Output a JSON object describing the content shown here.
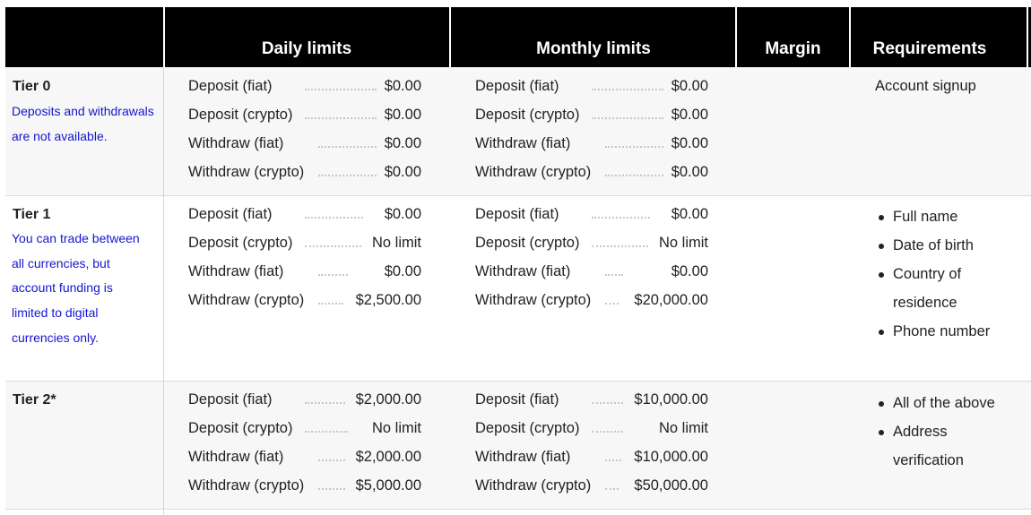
{
  "headers": {
    "daily": "Daily limits",
    "monthly": "Monthly limits",
    "margin": "Margin",
    "requirements": "Requirements"
  },
  "tiers": [
    {
      "title": "Tier 0",
      "desc": "Deposits and withdrawals are not available.",
      "daily": [
        {
          "label": "Deposit (fiat)",
          "value": "$0.00"
        },
        {
          "label": "Deposit (crypto)",
          "value": "$0.00"
        },
        {
          "label": "Withdraw (fiat)",
          "value": "$0.00"
        },
        {
          "label": "Withdraw (crypto)",
          "value": "$0.00"
        }
      ],
      "monthly": [
        {
          "label": "Deposit (fiat)",
          "value": "$0.00"
        },
        {
          "label": "Deposit (crypto)",
          "value": "$0.00"
        },
        {
          "label": "Withdraw (fiat)",
          "value": "$0.00"
        },
        {
          "label": "Withdraw (crypto)",
          "value": "$0.00"
        }
      ],
      "requirements_text": "Account signup"
    },
    {
      "title": "Tier 1",
      "desc": "You can trade between all currencies, but account funding is limited to digital currencies only.",
      "daily": [
        {
          "label": "Deposit (fiat)",
          "value": "$0.00"
        },
        {
          "label": "Deposit (crypto)",
          "value": "No limit"
        },
        {
          "label": "Withdraw (fiat)",
          "value": "$0.00"
        },
        {
          "label": "Withdraw (crypto)",
          "value": "$2,500.00"
        }
      ],
      "monthly": [
        {
          "label": "Deposit (fiat)",
          "value": "$0.00"
        },
        {
          "label": "Deposit (crypto)",
          "value": "No limit"
        },
        {
          "label": "Withdraw (fiat)",
          "value": "$0.00"
        },
        {
          "label": "Withdraw (crypto)",
          "value": "$20,000.00"
        }
      ],
      "requirements": [
        "Full name",
        "Date of birth",
        "Country of residence",
        "Phone number"
      ]
    },
    {
      "title": "Tier 2*",
      "desc": "",
      "daily": [
        {
          "label": "Deposit (fiat)",
          "value": "$2,000.00"
        },
        {
          "label": "Deposit (crypto)",
          "value": "No limit"
        },
        {
          "label": "Withdraw (fiat)",
          "value": "$2,000.00"
        },
        {
          "label": "Withdraw (crypto)",
          "value": "$5,000.00"
        }
      ],
      "monthly": [
        {
          "label": "Deposit (fiat)",
          "value": "$10,000.00"
        },
        {
          "label": "Deposit (crypto)",
          "value": "No limit"
        },
        {
          "label": "Withdraw (fiat)",
          "value": "$10,000.00"
        },
        {
          "label": "Withdraw (crypto)",
          "value": "$50,000.00"
        }
      ],
      "requirements": [
        "All of the above",
        "Address verification"
      ]
    }
  ]
}
